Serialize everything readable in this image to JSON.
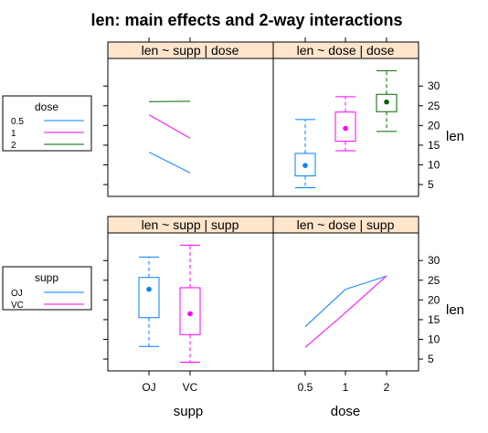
{
  "title": "len: main effects and 2-way interactions",
  "colors": {
    "strip_fill": "#ffe5cc",
    "level1": "#0080ff",
    "level2": "#ff00ff",
    "level3": "#006400"
  },
  "axis": {
    "xlabel_left": "supp",
    "xlabel_right": "dose",
    "ylabel": "len",
    "ylim": [
      2,
      37
    ],
    "yticks": [
      "5",
      "10",
      "15",
      "20",
      "25",
      "30"
    ]
  },
  "legend_dose": {
    "title": "dose",
    "items": [
      "0.5",
      "1",
      "2"
    ]
  },
  "legend_supp": {
    "title": "supp",
    "items": [
      "OJ",
      "VC"
    ]
  },
  "chart_data": [
    {
      "panel": "top-left",
      "strip": "len ~ supp | dose",
      "type": "line",
      "x": [
        "OJ",
        "VC"
      ],
      "series": [
        {
          "name": "0.5",
          "values": [
            13.23,
            7.98
          ],
          "color": "#0080ff"
        },
        {
          "name": "1",
          "values": [
            22.7,
            16.77
          ],
          "color": "#ff00ff"
        },
        {
          "name": "2",
          "values": [
            26.06,
            26.14
          ],
          "color": "#006400"
        }
      ]
    },
    {
      "panel": "top-right",
      "strip": "len ~ dose | dose",
      "type": "boxplot",
      "x": [
        "0.5",
        "1",
        "2"
      ],
      "boxes": [
        {
          "category": "0.5",
          "whisker_low": 4.2,
          "q1": 7.2,
          "median": 9.85,
          "q3": 12.9,
          "whisker_high": 21.5,
          "mean": 10.6,
          "color": "#0080ff"
        },
        {
          "category": "1",
          "whisker_low": 13.6,
          "q1": 16.0,
          "median": 19.25,
          "q3": 23.4,
          "whisker_high": 27.3,
          "mean": 19.7,
          "color": "#ff00ff"
        },
        {
          "category": "2",
          "whisker_low": 18.5,
          "q1": 23.5,
          "median": 25.95,
          "q3": 27.9,
          "whisker_high": 33.9,
          "mean": 26.1,
          "color": "#006400"
        }
      ]
    },
    {
      "panel": "bottom-left",
      "strip": "len ~ supp | supp",
      "type": "boxplot",
      "x": [
        "OJ",
        "VC"
      ],
      "boxes": [
        {
          "category": "OJ",
          "whisker_low": 8.2,
          "q1": 15.5,
          "median": 22.7,
          "q3": 25.7,
          "whisker_high": 30.9,
          "mean": 20.66,
          "color": "#0080ff"
        },
        {
          "category": "VC",
          "whisker_low": 4.2,
          "q1": 11.2,
          "median": 16.5,
          "q3": 23.1,
          "whisker_high": 33.9,
          "mean": 16.96,
          "color": "#ff00ff"
        }
      ]
    },
    {
      "panel": "bottom-right",
      "strip": "len ~ dose | supp",
      "type": "line",
      "x": [
        "0.5",
        "1",
        "2"
      ],
      "series": [
        {
          "name": "OJ",
          "values": [
            13.23,
            22.7,
            26.06
          ],
          "color": "#0080ff"
        },
        {
          "name": "VC",
          "values": [
            7.98,
            16.77,
            26.14
          ],
          "color": "#ff00ff"
        }
      ]
    }
  ]
}
